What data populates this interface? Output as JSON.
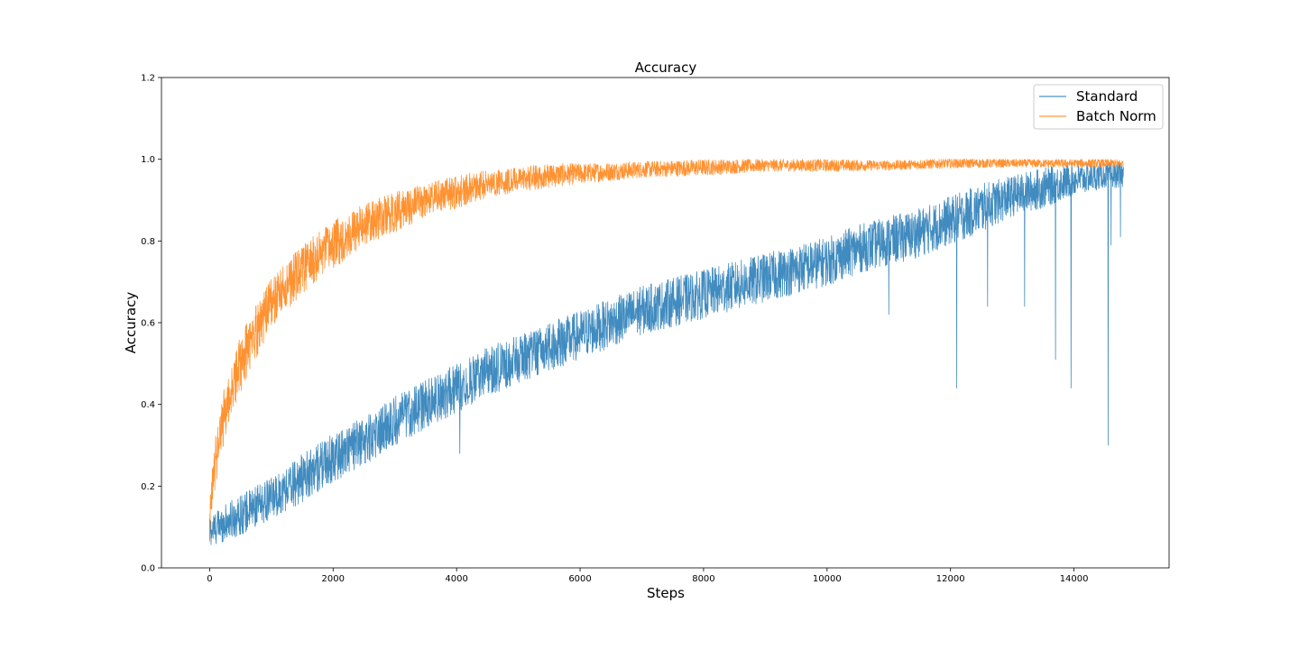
{
  "chart_data": {
    "type": "line",
    "title": "Accuracy",
    "xlabel": "Steps",
    "ylabel": "Accuracy",
    "xlim": [
      -780,
      15540
    ],
    "ylim": [
      0.0,
      1.2
    ],
    "xticks": [
      "0",
      "2000",
      "4000",
      "6000",
      "8000",
      "10000",
      "12000",
      "14000"
    ],
    "yticks": [
      "0.0",
      "0.2",
      "0.4",
      "0.6",
      "0.8",
      "1.0",
      "1.2"
    ],
    "grid": false,
    "legend_position": "top-right",
    "x_range": [
      0,
      14800
    ],
    "series": [
      {
        "name": "Standard",
        "color": "#1f77b4",
        "x": [
          0,
          500,
          1000,
          1500,
          2000,
          2500,
          3000,
          3500,
          4000,
          4500,
          5000,
          5500,
          6000,
          6500,
          7000,
          7500,
          8000,
          8500,
          9000,
          9500,
          10000,
          10500,
          11000,
          11500,
          12000,
          12500,
          13000,
          13500,
          14000,
          14500,
          14800
        ],
        "values": [
          0.09,
          0.13,
          0.17,
          0.22,
          0.27,
          0.31,
          0.36,
          0.4,
          0.44,
          0.48,
          0.51,
          0.54,
          0.57,
          0.6,
          0.63,
          0.65,
          0.67,
          0.69,
          0.71,
          0.73,
          0.75,
          0.78,
          0.8,
          0.82,
          0.85,
          0.88,
          0.91,
          0.93,
          0.95,
          0.96,
          0.96
        ],
        "spread": [
          0.04,
          0.05,
          0.05,
          0.06,
          0.06,
          0.06,
          0.06,
          0.06,
          0.06,
          0.06,
          0.06,
          0.06,
          0.06,
          0.06,
          0.06,
          0.06,
          0.06,
          0.06,
          0.06,
          0.06,
          0.06,
          0.06,
          0.06,
          0.06,
          0.06,
          0.06,
          0.05,
          0.05,
          0.04,
          0.03,
          0.03
        ],
        "dips": [
          [
            11000,
            0.62
          ],
          [
            12100,
            0.44
          ],
          [
            12600,
            0.64
          ],
          [
            13200,
            0.64
          ],
          [
            13700,
            0.51
          ],
          [
            13950,
            0.44
          ],
          [
            14550,
            0.3
          ],
          [
            14600,
            0.79
          ],
          [
            14750,
            0.81
          ],
          [
            4050,
            0.28
          ]
        ]
      },
      {
        "name": "Batch Norm",
        "color": "#ff7f0e",
        "x": [
          0,
          50,
          100,
          200,
          300,
          500,
          750,
          1000,
          1500,
          2000,
          2500,
          3000,
          3500,
          4000,
          4500,
          5000,
          5500,
          6000,
          7000,
          8000,
          9000,
          10000,
          11000,
          12000,
          13000,
          14000,
          14800
        ],
        "values": [
          0.1,
          0.2,
          0.27,
          0.35,
          0.41,
          0.5,
          0.58,
          0.65,
          0.73,
          0.79,
          0.84,
          0.87,
          0.9,
          0.92,
          0.94,
          0.95,
          0.96,
          0.965,
          0.975,
          0.98,
          0.985,
          0.985,
          0.985,
          0.99,
          0.99,
          0.99,
          0.99
        ],
        "spread": [
          0.05,
          0.06,
          0.07,
          0.07,
          0.07,
          0.07,
          0.07,
          0.06,
          0.06,
          0.06,
          0.05,
          0.05,
          0.04,
          0.04,
          0.035,
          0.03,
          0.03,
          0.025,
          0.02,
          0.02,
          0.015,
          0.015,
          0.012,
          0.012,
          0.01,
          0.01,
          0.01
        ],
        "dips": []
      }
    ]
  }
}
